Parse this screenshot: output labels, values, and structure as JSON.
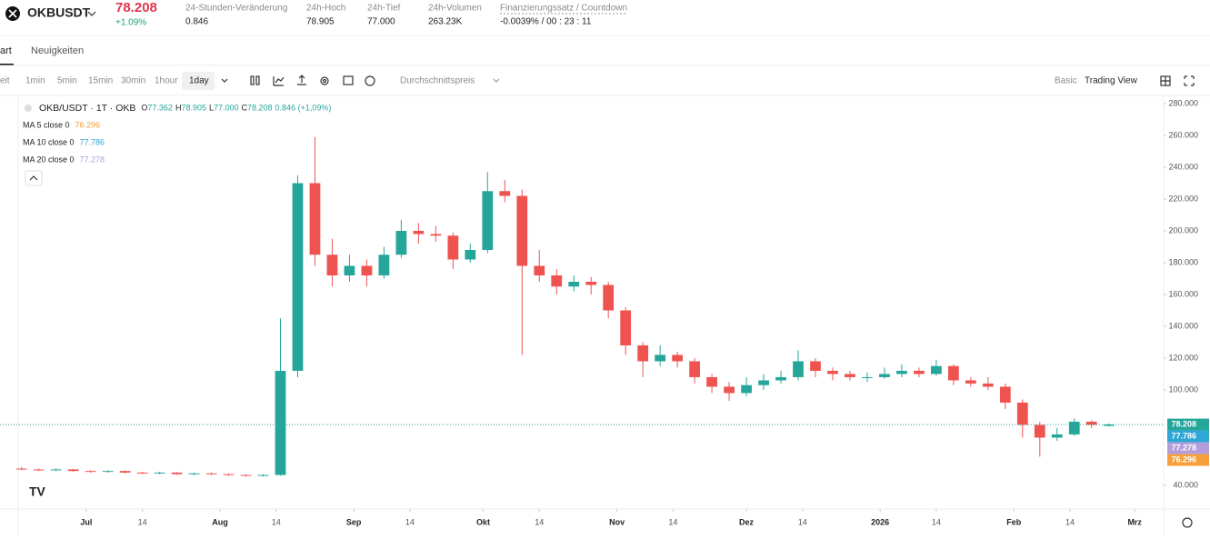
{
  "header": {
    "symbol": "OKBUSDT",
    "price": "78.208",
    "change": "+1.09%",
    "stats": [
      {
        "label": "24-Stunden-Veränderung",
        "value": "0.846"
      },
      {
        "label": "24h-Hoch",
        "value": "78.905"
      },
      {
        "label": "24h-Tief",
        "value": "77.000"
      },
      {
        "label": "24h-Volumen",
        "value": "263.23K"
      },
      {
        "label": "Finanzierungssatz / Countdown",
        "value": "-0.0039% / 00 : 23 : 11"
      }
    ]
  },
  "tabs": [
    "art",
    "Neuigkeiten"
  ],
  "toolbar": {
    "time_label": "eit",
    "intervals": [
      "1min",
      "5min",
      "15min",
      "30min",
      "1hour",
      "1day"
    ],
    "price_type": "Durchschnittspreis",
    "views": [
      "Basic",
      "Trading View"
    ]
  },
  "chart_data": {
    "type": "candlestick",
    "title": "OKB/USDT · 1T · OKB",
    "ohlc_text": [
      {
        "key": "O",
        "value": "77.362"
      },
      {
        "key": "H",
        "value": "78.905"
      },
      {
        "key": "L",
        "value": "77.000"
      },
      {
        "key": "C",
        "value": "78.208"
      }
    ],
    "change_text": "0.846 (+1,09%)",
    "up_color": "#26a69a",
    "down_color": "#ef5350",
    "x": [
      -15,
      -11,
      -7,
      -3,
      1,
      5,
      9,
      13,
      17,
      21,
      25,
      29,
      33,
      37,
      41,
      45,
      49,
      53,
      57,
      61,
      65,
      69,
      73,
      77,
      81,
      85,
      89,
      93,
      97,
      101,
      105,
      109,
      113,
      117,
      121,
      125,
      129,
      133,
      137,
      141,
      145,
      149,
      153,
      157,
      161,
      165,
      169,
      173,
      177,
      181,
      185,
      189,
      193,
      197,
      201,
      205,
      209,
      213,
      217,
      221,
      225,
      229,
      233,
      237
    ],
    "open": [
      50.5,
      50,
      49.5,
      50,
      49,
      48.5,
      49,
      48,
      47.5,
      48,
      47,
      47.5,
      47,
      46.5,
      46,
      46.5,
      112,
      230,
      185,
      172,
      178,
      172,
      185,
      200,
      198,
      197,
      182,
      188,
      225,
      222,
      178,
      172,
      165,
      168,
      166,
      150,
      128,
      118,
      122,
      118,
      108,
      102,
      98,
      103,
      106,
      108,
      118,
      112,
      110,
      108,
      108,
      110,
      112,
      110,
      115,
      106,
      104,
      102,
      92,
      78,
      70,
      72,
      80,
      77.362
    ],
    "high": [
      51.5,
      50.5,
      50.8,
      50.3,
      49.5,
      49.5,
      49.3,
      48.5,
      48.5,
      48.3,
      48,
      48,
      47.5,
      47,
      47,
      145,
      235,
      259,
      195,
      185,
      182,
      190,
      207,
      205,
      203,
      199,
      192,
      237,
      232,
      226,
      188,
      176,
      172,
      171,
      168,
      152,
      130,
      128,
      124,
      120,
      110,
      105,
      108,
      110,
      112,
      125,
      120,
      114,
      112,
      111,
      114,
      116,
      114,
      119,
      116,
      108,
      108,
      104,
      94,
      80,
      76,
      82,
      81,
      78.905
    ],
    "low": [
      49.5,
      49,
      49,
      48.5,
      48,
      48,
      47.5,
      47,
      47,
      46.5,
      46.5,
      46.5,
      46,
      45.5,
      45.5,
      46,
      108,
      178,
      165,
      168,
      165,
      170,
      183,
      192,
      193,
      176,
      180,
      186,
      218,
      122,
      168,
      160,
      162,
      160,
      145,
      122,
      108,
      115,
      114,
      104,
      98,
      93,
      96,
      100,
      104,
      106,
      108,
      106,
      106,
      105,
      107,
      108,
      108,
      109,
      103,
      102,
      100,
      88,
      70,
      58,
      68,
      71,
      76,
      77
    ],
    "close": [
      50,
      49.5,
      50,
      49,
      48.5,
      49,
      48,
      47.5,
      48,
      47,
      47.5,
      47,
      46.5,
      46,
      46.5,
      112,
      230,
      185,
      172,
      178,
      172,
      185,
      200,
      198,
      197,
      182,
      188,
      225,
      222,
      178,
      172,
      165,
      168,
      166,
      150,
      128,
      118,
      122,
      118,
      108,
      102,
      98,
      103,
      106,
      108,
      118,
      112,
      110,
      108,
      108,
      110,
      112,
      110,
      115,
      106,
      104,
      102,
      92,
      78,
      70,
      72,
      80,
      78,
      78.208
    ],
    "series": [
      {
        "name": "MA 5 close 0",
        "color": "#f5a03c",
        "x": [
          -15,
          -7,
          1,
          9,
          17,
          25,
          33,
          41,
          49,
          57,
          65,
          73,
          81,
          89,
          97,
          105,
          113,
          121,
          129,
          137,
          145,
          153,
          161,
          169,
          177,
          185,
          193,
          201,
          209,
          217,
          225,
          233,
          237
        ],
        "values": [
          50,
          49.8,
          48.8,
          48.3,
          47.8,
          47.3,
          46.8,
          46.3,
          120,
          195,
          175,
          190,
          198,
          188,
          210,
          185,
          168,
          158,
          125,
          120,
          105,
          100,
          107,
          113,
          109,
          110,
          111,
          107,
          103,
          85,
          72,
          79,
          76.296
        ]
      },
      {
        "name": "MA 10 close 0",
        "color": "#2ea6d6",
        "x": [
          -15,
          -7,
          1,
          9,
          17,
          25,
          33,
          41,
          49,
          57,
          65,
          73,
          81,
          89,
          97,
          105,
          113,
          121,
          129,
          137,
          145,
          153,
          161,
          169,
          177,
          185,
          193,
          201,
          209,
          217,
          225,
          233,
          237
        ],
        "values": [
          50,
          50,
          49,
          48.5,
          48,
          47.5,
          47,
          46.5,
          85,
          175,
          178,
          182,
          195,
          190,
          200,
          200,
          172,
          162,
          135,
          122,
          110,
          102,
          106,
          110,
          110,
          109,
          111,
          109,
          105,
          95,
          76,
          78,
          77.786
        ]
      },
      {
        "name": "MA 20 close 0",
        "color": "#b39ddb",
        "x": [
          -15,
          -7,
          1,
          9,
          17,
          25,
          33,
          41,
          49,
          57,
          65,
          73,
          81,
          89,
          97,
          105,
          113,
          121,
          129,
          137,
          145,
          153,
          161,
          169,
          177,
          185,
          193,
          201,
          209,
          217,
          225,
          233,
          237
        ],
        "values": [
          50,
          50,
          49.5,
          49,
          48.3,
          47.8,
          47.3,
          46.8,
          65,
          125,
          160,
          178,
          190,
          192,
          197,
          203,
          185,
          172,
          150,
          130,
          118,
          106,
          104,
          107,
          110,
          109,
          110,
          110,
          108,
          102,
          88,
          80,
          77.278
        ]
      }
    ],
    "xlim": [
      -20,
      249.7
    ],
    "xticks": [
      {
        "value": 0,
        "label": "Jul"
      },
      {
        "value": 13,
        "label": "14"
      },
      {
        "value": 31,
        "label": "Aug"
      },
      {
        "value": 44,
        "label": "14"
      },
      {
        "value": 62,
        "label": "Sep"
      },
      {
        "value": 75,
        "label": "14"
      },
      {
        "value": 92,
        "label": "Okt"
      },
      {
        "value": 105,
        "label": "14"
      },
      {
        "value": 123,
        "label": "Nov"
      },
      {
        "value": 136,
        "label": "14"
      },
      {
        "value": 153,
        "label": "Dez"
      },
      {
        "value": 166,
        "label": "14"
      },
      {
        "value": 184,
        "label": "2026"
      },
      {
        "value": 197,
        "label": "14"
      },
      {
        "value": 215,
        "label": "Feb"
      },
      {
        "value": 228,
        "label": "14"
      },
      {
        "value": 243,
        "label": "Mrz"
      }
    ],
    "ylim": [
      25.1,
      284.6
    ],
    "yticks": [
      {
        "value": 40,
        "label": "40.000"
      },
      {
        "value": 100,
        "label": "100.000"
      },
      {
        "value": 120,
        "label": "120.000"
      },
      {
        "value": 140,
        "label": "140.000"
      },
      {
        "value": 160,
        "label": "160.000"
      },
      {
        "value": 180,
        "label": "180.000"
      },
      {
        "value": 200,
        "label": "200.000"
      },
      {
        "value": 220,
        "label": "220.000"
      },
      {
        "value": 240,
        "label": "240.000"
      },
      {
        "value": 260,
        "label": "260.000"
      },
      {
        "value": 280,
        "label": "280.000"
      }
    ],
    "grid": false
  }
}
